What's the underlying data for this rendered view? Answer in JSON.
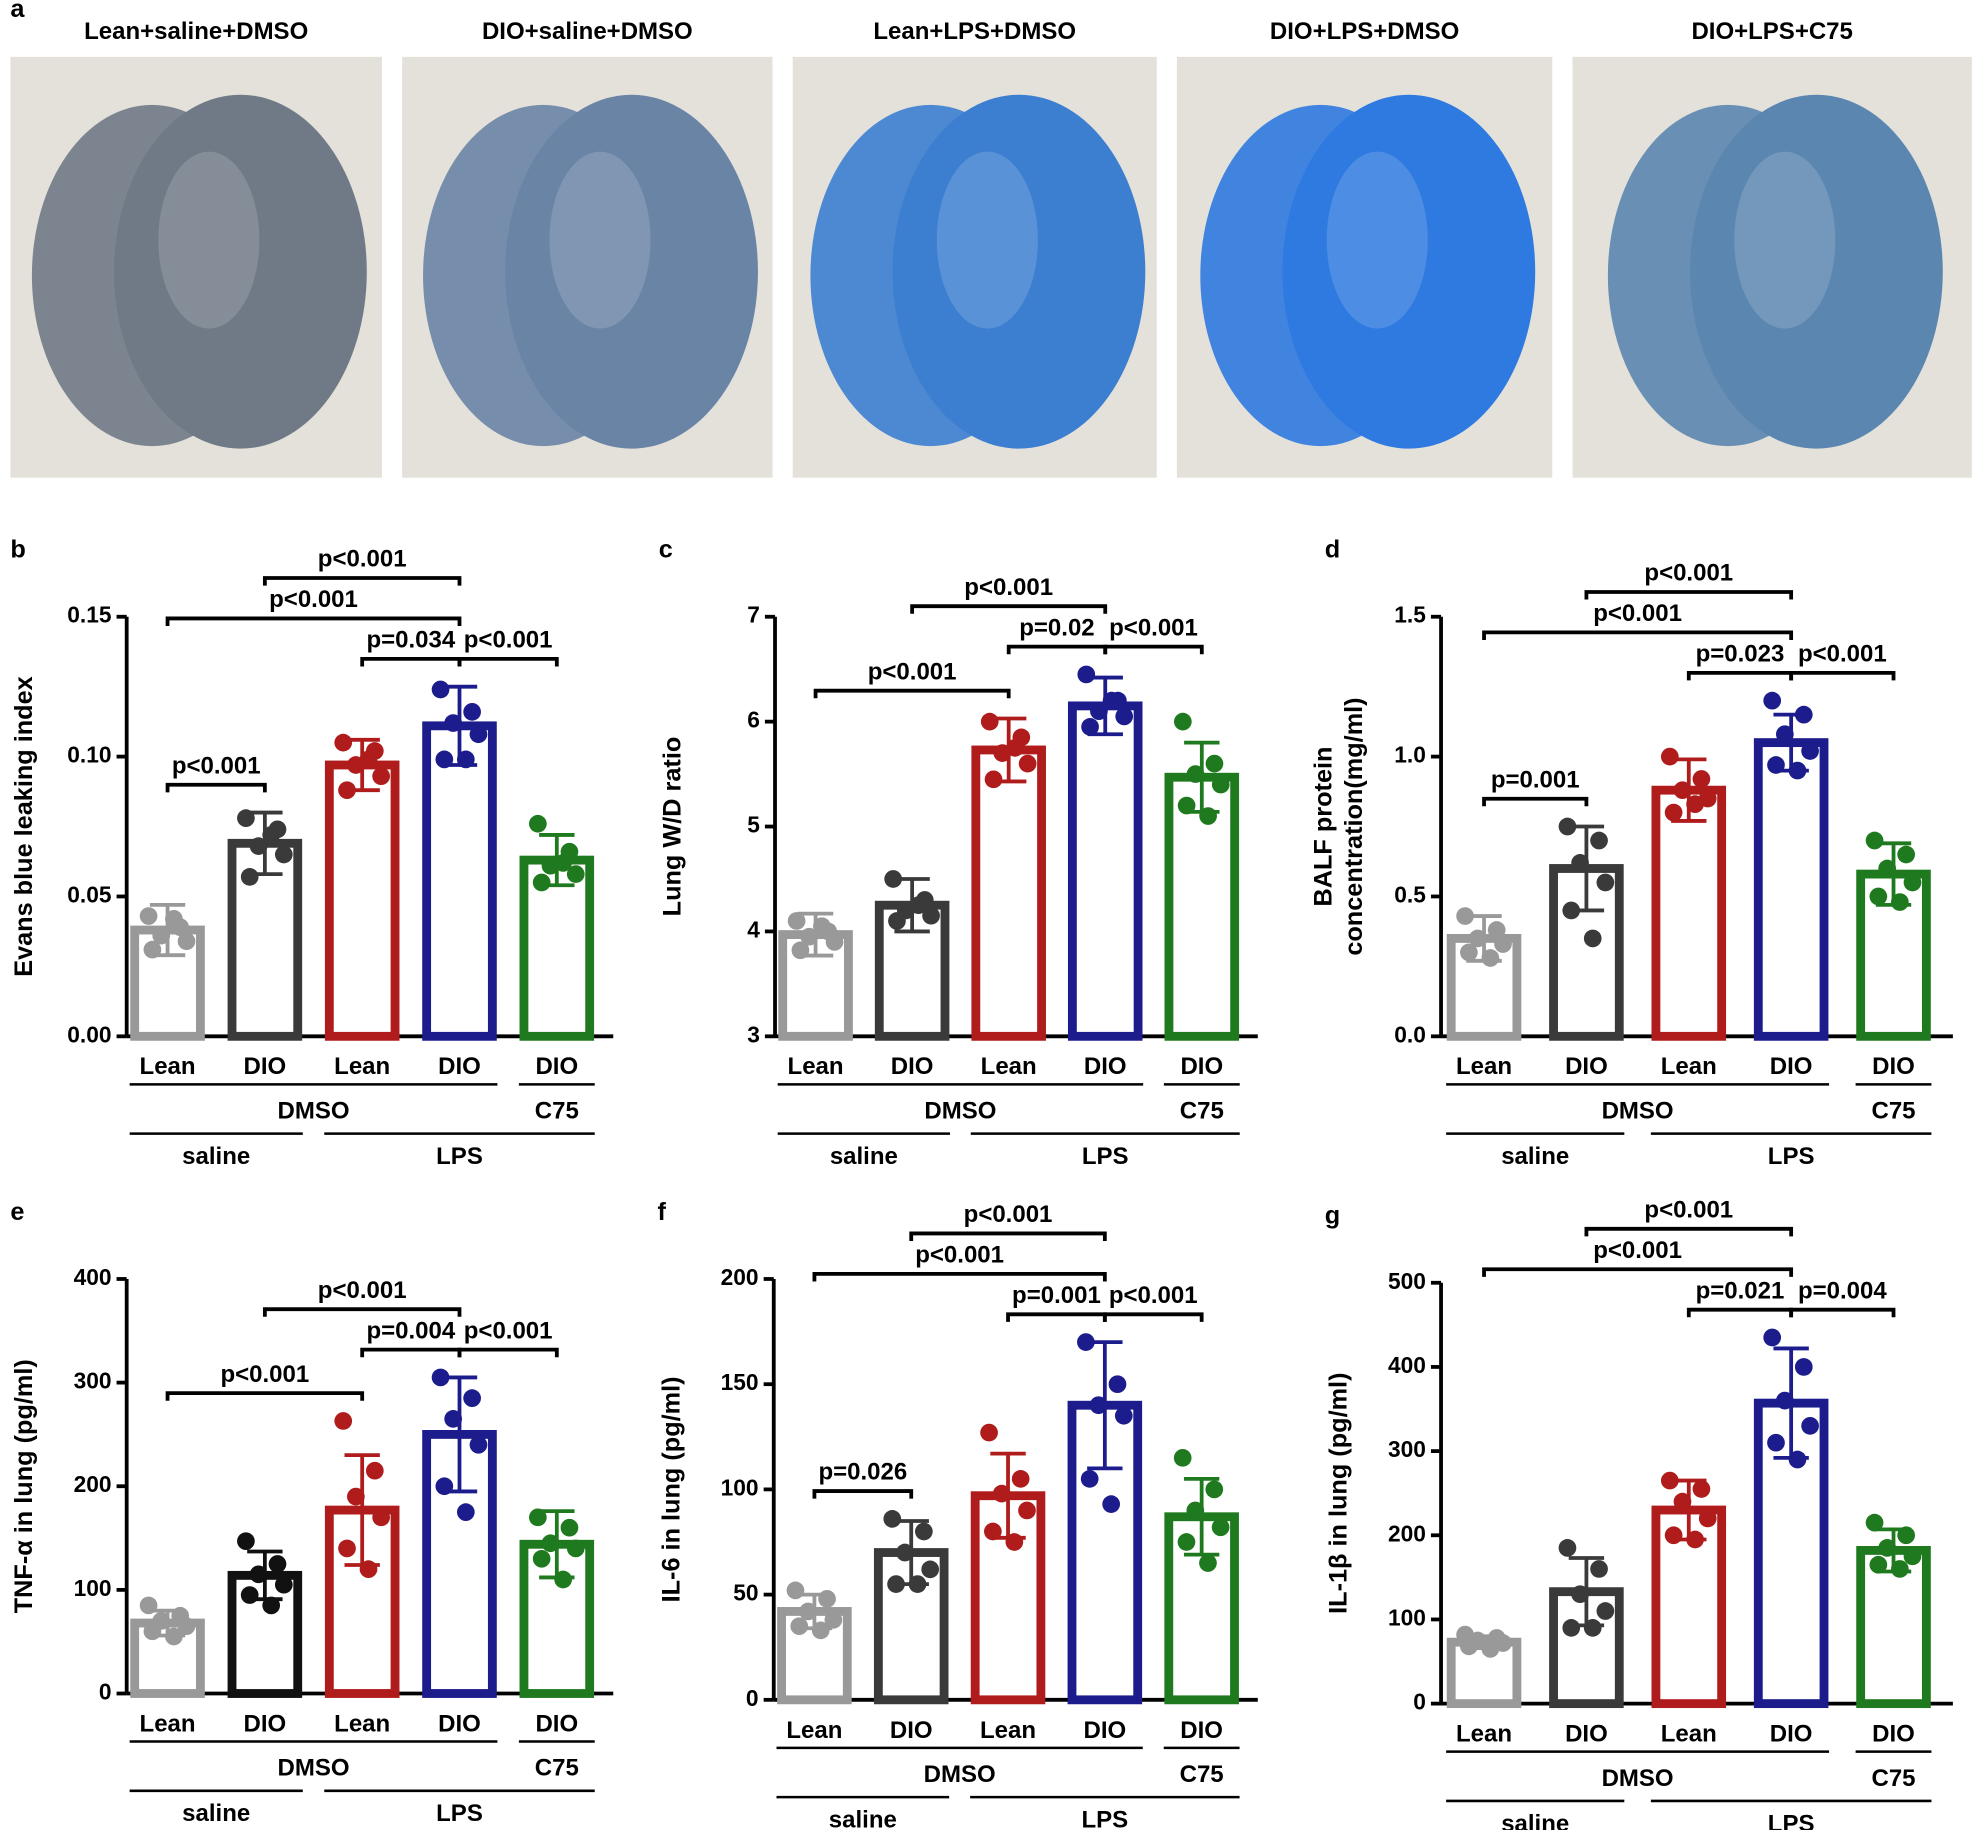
{
  "panel_a": {
    "label": "a",
    "titles": [
      "Lean+saline+DMSO",
      "DIO+saline+DMSO",
      "Lean+LPS+DMSO",
      "DIO+LPS+DMSO",
      "DIO+LPS+C75"
    ]
  },
  "chart_data": [
    {
      "type": "bar",
      "panel": "b",
      "ylabel": "Evans blue leaking index",
      "categories": [
        "Lean",
        "DIO",
        "Lean",
        "DIO",
        "DIO"
      ],
      "groups": [
        [
          {
            "label": "DMSO",
            "from": 0,
            "to": 3
          },
          {
            "label": "C75",
            "from": 4,
            "to": 4
          }
        ],
        [
          {
            "label": "saline",
            "from": 0,
            "to": 1
          },
          {
            "label": "LPS",
            "from": 2,
            "to": 4
          }
        ]
      ],
      "colors": [
        "#999999",
        "#3a3a3a",
        "#b01c1c",
        "#1c1c8c",
        "#1f7a1f"
      ],
      "values": [
        0.038,
        0.069,
        0.097,
        0.111,
        0.063
      ],
      "errors": [
        0.009,
        0.011,
        0.009,
        0.014,
        0.009
      ],
      "points": [
        [
          0.043,
          0.039,
          0.036,
          0.034,
          0.031,
          0.042
        ],
        [
          0.078,
          0.074,
          0.068,
          0.065,
          0.057,
          0.072
        ],
        [
          0.105,
          0.102,
          0.097,
          0.093,
          0.088,
          0.099
        ],
        [
          0.124,
          0.116,
          0.112,
          0.108,
          0.099,
          0.099
        ],
        [
          0.076,
          0.066,
          0.061,
          0.058,
          0.055,
          0.062
        ]
      ],
      "ylim": [
        0,
        0.15
      ],
      "yticks": [
        {
          "value": 0,
          "label": "0.00"
        },
        0.05,
        {
          "value": 0.1,
          "label": "0.10"
        },
        0.15
      ],
      "comparisons": [
        {
          "from": 0,
          "to": 1,
          "text": "p<0.001"
        },
        {
          "from": 2,
          "to": 3,
          "text": "p=0.034"
        },
        {
          "from": 0,
          "to": 3,
          "text": "p<0.001"
        },
        {
          "from": 1,
          "to": 3,
          "text": "p<0.001"
        },
        {
          "from": 3,
          "to": 4,
          "text": "p<0.001"
        }
      ]
    },
    {
      "type": "bar",
      "panel": "c",
      "ylabel": "Lung W/D ratio",
      "categories": [
        "Lean",
        "DIO",
        "Lean",
        "DIO",
        "DIO"
      ],
      "groups": [
        [
          {
            "label": "DMSO",
            "from": 0,
            "to": 3
          },
          {
            "label": "C75",
            "from": 4,
            "to": 4
          }
        ],
        [
          {
            "label": "saline",
            "from": 0,
            "to": 1
          },
          {
            "label": "LPS",
            "from": 2,
            "to": 4
          }
        ]
      ],
      "colors": [
        "#999999",
        "#3a3a3a",
        "#b01c1c",
        "#1c1c8c",
        "#1f7a1f"
      ],
      "values": [
        3.97,
        4.25,
        5.73,
        6.15,
        5.47
      ],
      "errors": [
        0.2,
        0.25,
        0.3,
        0.27,
        0.33
      ],
      "points": [
        [
          4.1,
          4.0,
          3.95,
          3.9,
          3.82,
          4.05
        ],
        [
          4.5,
          4.3,
          4.2,
          4.15,
          4.1,
          4.25
        ],
        [
          6.0,
          5.85,
          5.7,
          5.6,
          5.45,
          5.75
        ],
        [
          6.45,
          6.2,
          6.1,
          6.05,
          5.95,
          6.2
        ],
        [
          6.0,
          5.6,
          5.5,
          5.4,
          5.2,
          5.1
        ]
      ],
      "ylim": [
        3,
        7
      ],
      "yticks": [
        3,
        4,
        5,
        6,
        7
      ],
      "comparisons": [
        {
          "from": 2,
          "to": 3,
          "text": "p=0.02"
        },
        {
          "from": 0,
          "to": 2,
          "text": "p<0.001"
        },
        {
          "from": 1,
          "to": 3,
          "text": "p<0.001"
        },
        {
          "from": 3,
          "to": 4,
          "text": "p<0.001"
        }
      ]
    },
    {
      "type": "bar",
      "panel": "d",
      "ylabel": [
        "BALF protein",
        "concentration(mg/ml)"
      ],
      "categories": [
        "Lean",
        "DIO",
        "Lean",
        "DIO",
        "DIO"
      ],
      "groups": [
        [
          {
            "label": "DMSO",
            "from": 0,
            "to": 3
          },
          {
            "label": "C75",
            "from": 4,
            "to": 4
          }
        ],
        [
          {
            "label": "saline",
            "from": 0,
            "to": 1
          },
          {
            "label": "LPS",
            "from": 2,
            "to": 4
          }
        ]
      ],
      "colors": [
        "#999999",
        "#3a3a3a",
        "#b01c1c",
        "#1c1c8c",
        "#1f7a1f"
      ],
      "values": [
        0.35,
        0.6,
        0.88,
        1.05,
        0.58
      ],
      "errors": [
        0.08,
        0.15,
        0.11,
        0.1,
        0.11
      ],
      "points": [
        [
          0.43,
          0.38,
          0.35,
          0.33,
          0.3,
          0.28
        ],
        [
          0.75,
          0.7,
          0.62,
          0.55,
          0.45,
          0.35
        ],
        [
          1.0,
          0.92,
          0.88,
          0.85,
          0.8,
          0.83
        ],
        [
          1.2,
          1.15,
          1.08,
          1.02,
          0.97,
          0.95
        ],
        [
          0.7,
          0.65,
          0.6,
          0.55,
          0.5,
          0.48
        ]
      ],
      "ylim": [
        0,
        1.5
      ],
      "yticks": [
        {
          "value": 0,
          "label": "0.0"
        },
        0.5,
        {
          "value": 1,
          "label": "1.0"
        },
        1.5
      ],
      "comparisons": [
        {
          "from": 0,
          "to": 1,
          "text": "p=0.001"
        },
        {
          "from": 2,
          "to": 3,
          "text": "p=0.023"
        },
        {
          "from": 0,
          "to": 3,
          "text": "p<0.001"
        },
        {
          "from": 1,
          "to": 3,
          "text": "p<0.001"
        },
        {
          "from": 3,
          "to": 4,
          "text": "p<0.001"
        }
      ]
    },
    {
      "type": "bar",
      "panel": "e",
      "ylabel": "TNF-α in lung (pg/ml)",
      "categories": [
        "Lean",
        "DIO",
        "Lean",
        "DIO",
        "DIO"
      ],
      "groups": [
        [
          {
            "label": "DMSO",
            "from": 0,
            "to": 3
          },
          {
            "label": "C75",
            "from": 4,
            "to": 4
          }
        ],
        [
          {
            "label": "saline",
            "from": 0,
            "to": 1
          },
          {
            "label": "LPS",
            "from": 2,
            "to": 4
          }
        ]
      ],
      "colors": [
        "#999999",
        "#111111",
        "#b01c1c",
        "#1c1c8c",
        "#1f7a1f"
      ],
      "values": [
        68,
        114,
        177,
        250,
        144
      ],
      "errors": [
        12,
        23,
        53,
        55,
        32
      ],
      "points": [
        [
          85,
          75,
          70,
          65,
          60,
          55
        ],
        [
          147,
          125,
          115,
          105,
          95,
          85
        ],
        [
          263,
          215,
          190,
          170,
          140,
          120
        ],
        [
          305,
          285,
          265,
          240,
          200,
          175
        ],
        [
          170,
          160,
          145,
          140,
          130,
          110
        ]
      ],
      "ylim": [
        0,
        400
      ],
      "yticks": [
        0,
        100,
        200,
        300,
        400
      ],
      "comparisons": [
        {
          "from": 2,
          "to": 3,
          "text": "p=0.004"
        },
        {
          "from": 0,
          "to": 2,
          "text": "p<0.001"
        },
        {
          "from": 1,
          "to": 3,
          "text": "p<0.001"
        },
        {
          "from": 3,
          "to": 4,
          "text": "p<0.001"
        }
      ]
    },
    {
      "type": "bar",
      "panel": "f",
      "ylabel": "IL-6 in lung (pg/ml)",
      "categories": [
        "Lean",
        "DIO",
        "Lean",
        "DIO",
        "DIO"
      ],
      "groups": [
        [
          {
            "label": "DMSO",
            "from": 0,
            "to": 3
          },
          {
            "label": "C75",
            "from": 4,
            "to": 4
          }
        ],
        [
          {
            "label": "saline",
            "from": 0,
            "to": 1
          },
          {
            "label": "LPS",
            "from": 2,
            "to": 4
          }
        ]
      ],
      "colors": [
        "#999999",
        "#3a3a3a",
        "#b01c1c",
        "#1c1c8c",
        "#1f7a1f"
      ],
      "values": [
        42,
        70,
        97,
        140,
        87
      ],
      "errors": [
        8,
        15,
        20,
        30,
        18
      ],
      "points": [
        [
          52,
          48,
          42,
          38,
          35,
          33
        ],
        [
          86,
          80,
          70,
          62,
          55,
          55
        ],
        [
          127,
          105,
          98,
          90,
          80,
          75
        ],
        [
          170,
          150,
          140,
          135,
          105,
          93
        ],
        [
          115,
          100,
          90,
          82,
          75,
          65
        ]
      ],
      "ylim": [
        0,
        200
      ],
      "yticks": [
        0,
        50,
        100,
        150,
        200
      ],
      "comparisons": [
        {
          "from": 0,
          "to": 1,
          "text": "p=0.026"
        },
        {
          "from": 2,
          "to": 3,
          "text": "p=0.001"
        },
        {
          "from": 0,
          "to": 3,
          "text": "p<0.001"
        },
        {
          "from": 1,
          "to": 3,
          "text": "p<0.001"
        },
        {
          "from": 3,
          "to": 4,
          "text": "p<0.001"
        }
      ]
    },
    {
      "type": "bar",
      "panel": "g",
      "ylabel": "IL-1β in lung (pg/ml)",
      "categories": [
        "Lean",
        "DIO",
        "Lean",
        "DIO",
        "DIO"
      ],
      "groups": [
        [
          {
            "label": "DMSO",
            "from": 0,
            "to": 3
          },
          {
            "label": "C75",
            "from": 4,
            "to": 4
          }
        ],
        [
          {
            "label": "saline",
            "from": 0,
            "to": 1
          },
          {
            "label": "LPS",
            "from": 2,
            "to": 4
          }
        ]
      ],
      "colors": [
        "#999999",
        "#3a3a3a",
        "#b01c1c",
        "#1c1c8c",
        "#1f7a1f"
      ],
      "values": [
        73,
        133,
        230,
        357,
        182
      ],
      "errors": [
        7,
        40,
        35,
        65,
        25
      ],
      "points": [
        [
          82,
          78,
          75,
          72,
          68,
          65
        ],
        [
          185,
          160,
          130,
          110,
          90,
          90
        ],
        [
          265,
          255,
          240,
          220,
          200,
          195
        ],
        [
          435,
          400,
          360,
          330,
          310,
          290
        ],
        [
          215,
          200,
          185,
          175,
          165,
          160
        ]
      ],
      "ylim": [
        0,
        500
      ],
      "yticks": [
        0,
        100,
        200,
        300,
        400,
        500
      ],
      "comparisons": [
        {
          "from": 2,
          "to": 3,
          "text": "p=0.021"
        },
        {
          "from": 0,
          "to": 3,
          "text": "p<0.001"
        },
        {
          "from": 1,
          "to": 3,
          "text": "p<0.001"
        },
        {
          "from": 3,
          "to": 4,
          "text": "p=0.004"
        }
      ]
    }
  ]
}
